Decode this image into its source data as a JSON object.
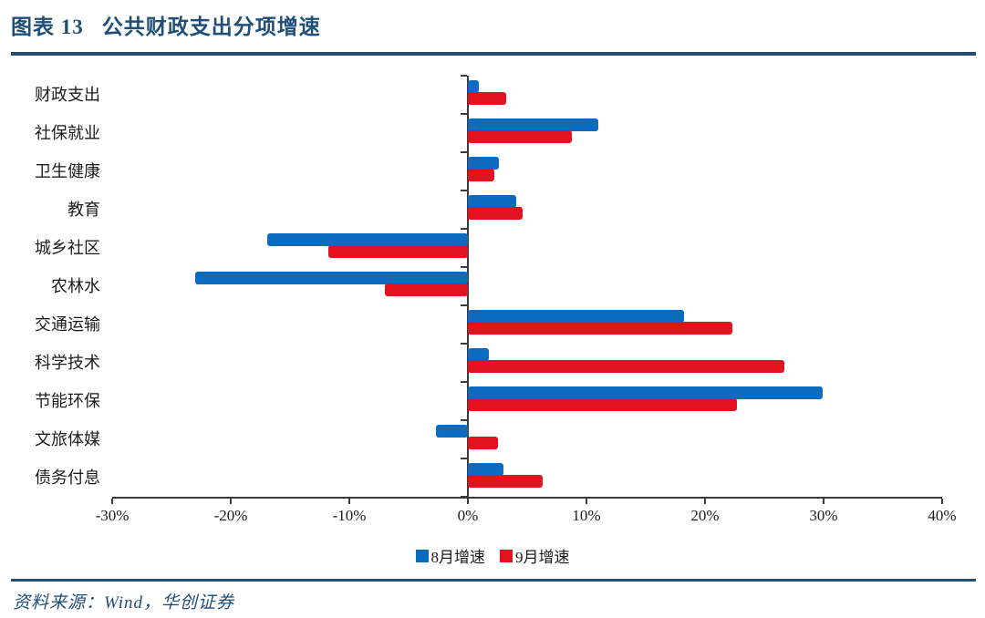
{
  "header": {
    "figure_label": "图表 13",
    "title": "公共财政支出分项增速"
  },
  "footer": {
    "source": "资料来源：Wind，华创证券"
  },
  "colors": {
    "accent_navy": "#1F4E79",
    "bar_blue": "#0C6BBF",
    "bar_red": "#E2131E",
    "axis": "#3a3a3a"
  },
  "chart_data": {
    "type": "bar",
    "orientation": "horizontal",
    "title": "公共财政支出分项增速",
    "categories": [
      "财政支出",
      "社保就业",
      "卫生健康",
      "教育",
      "城乡社区",
      "农林水",
      "交通运输",
      "科学技术",
      "节能环保",
      "文旅体媒",
      "债务付息"
    ],
    "series": [
      {
        "name": "8月增速",
        "color": "#0C6BBF",
        "values": [
          0.9,
          11.0,
          2.6,
          4.1,
          -16.9,
          -23.0,
          18.2,
          1.8,
          29.9,
          -2.7,
          3.0
        ]
      },
      {
        "name": "9月增速",
        "color": "#E2131E",
        "values": [
          3.2,
          8.8,
          2.2,
          4.6,
          -11.8,
          -7.0,
          22.3,
          26.7,
          22.7,
          2.5,
          6.3
        ]
      }
    ],
    "xlim": [
      -30,
      40
    ],
    "x_tick_step": 10,
    "x_tick_labels": [
      "-30%",
      "-20%",
      "-10%",
      "0%",
      "10%",
      "20%",
      "30%",
      "40%"
    ],
    "unit": "%",
    "grid": false,
    "legend_position": "bottom"
  }
}
